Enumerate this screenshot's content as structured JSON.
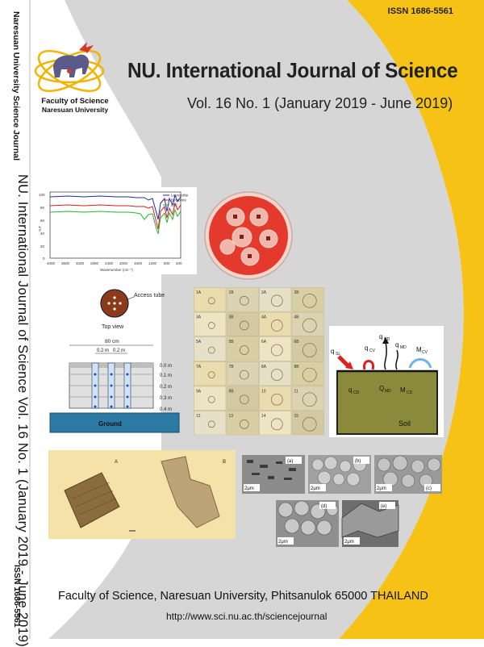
{
  "cover": {
    "issn_top": "ISSN 1686-5561",
    "journal_title": "NU. International Journal of Science",
    "volume_line": "Vol. 16 No. 1  (January 2019 - June 2019)",
    "faculty": "Faculty of Science",
    "university": "Naresuan University",
    "footer_address": "Faculty of Science, Naresuan University, Phitsanulok 65000 THAILAND",
    "footer_url": "http://www.sci.nu.ac.th/sciencejournal"
  },
  "spine": {
    "top_text": "Naresuan University Science Journal",
    "main_text": "NU. International Journal of Science Vol. 16 No. 1 (January 2019 - June 2019)",
    "issn_text": "ISSN 1686-5561"
  },
  "colors": {
    "accent_yellow": "#f6c216",
    "gray_panel": "#d5d5d5",
    "soil": "#8b8a3a"
  },
  "ftir": {
    "legend": [
      "Leonardite",
      "Bentonite",
      "LBC"
    ],
    "ticks": [
      "4000",
      "3600",
      "3200",
      "2800",
      "2400",
      "2000",
      "1600",
      "1200",
      "800",
      "400"
    ],
    "yticks": [
      "100",
      "80",
      "60",
      "40",
      "20",
      "0"
    ],
    "xlabel": "Wavenumber (cm⁻¹)",
    "ylabel": "%T"
  },
  "access": {
    "label": "Access tube",
    "top_view": "Top view",
    "width": "80 cm",
    "spacing1": "0.2 m",
    "spacing2": "0.2 m",
    "depths": [
      "0.0 m",
      "0.1 m",
      "0.2 m",
      "0.3 m",
      "0.4 m"
    ],
    "ground": "Ground"
  },
  "pollen": {
    "labels": [
      "1A",
      "1B",
      "2A",
      "2B",
      "3A",
      "3B",
      "4A",
      "4B",
      "5A",
      "5B",
      "6A",
      "6B",
      "7A",
      "7B",
      "8A",
      "8B",
      "9A",
      "9B",
      "10",
      "11",
      "12",
      "13",
      "14",
      "15"
    ]
  },
  "soil": {
    "labels": [
      "q",
      "q",
      "q",
      "q",
      "M",
      "q",
      "Q",
      "M"
    ],
    "subs": [
      "SL",
      "CV",
      "RD",
      "MD",
      "CV",
      "CD",
      "MD",
      "CD"
    ],
    "soil_label": "Soil"
  },
  "micro": {
    "label_a": "A",
    "label_b": "B"
  },
  "sem": {
    "panels": [
      "(a)",
      "(b)",
      "(c)",
      "(d)",
      "(e)"
    ],
    "scale": "2μm"
  }
}
